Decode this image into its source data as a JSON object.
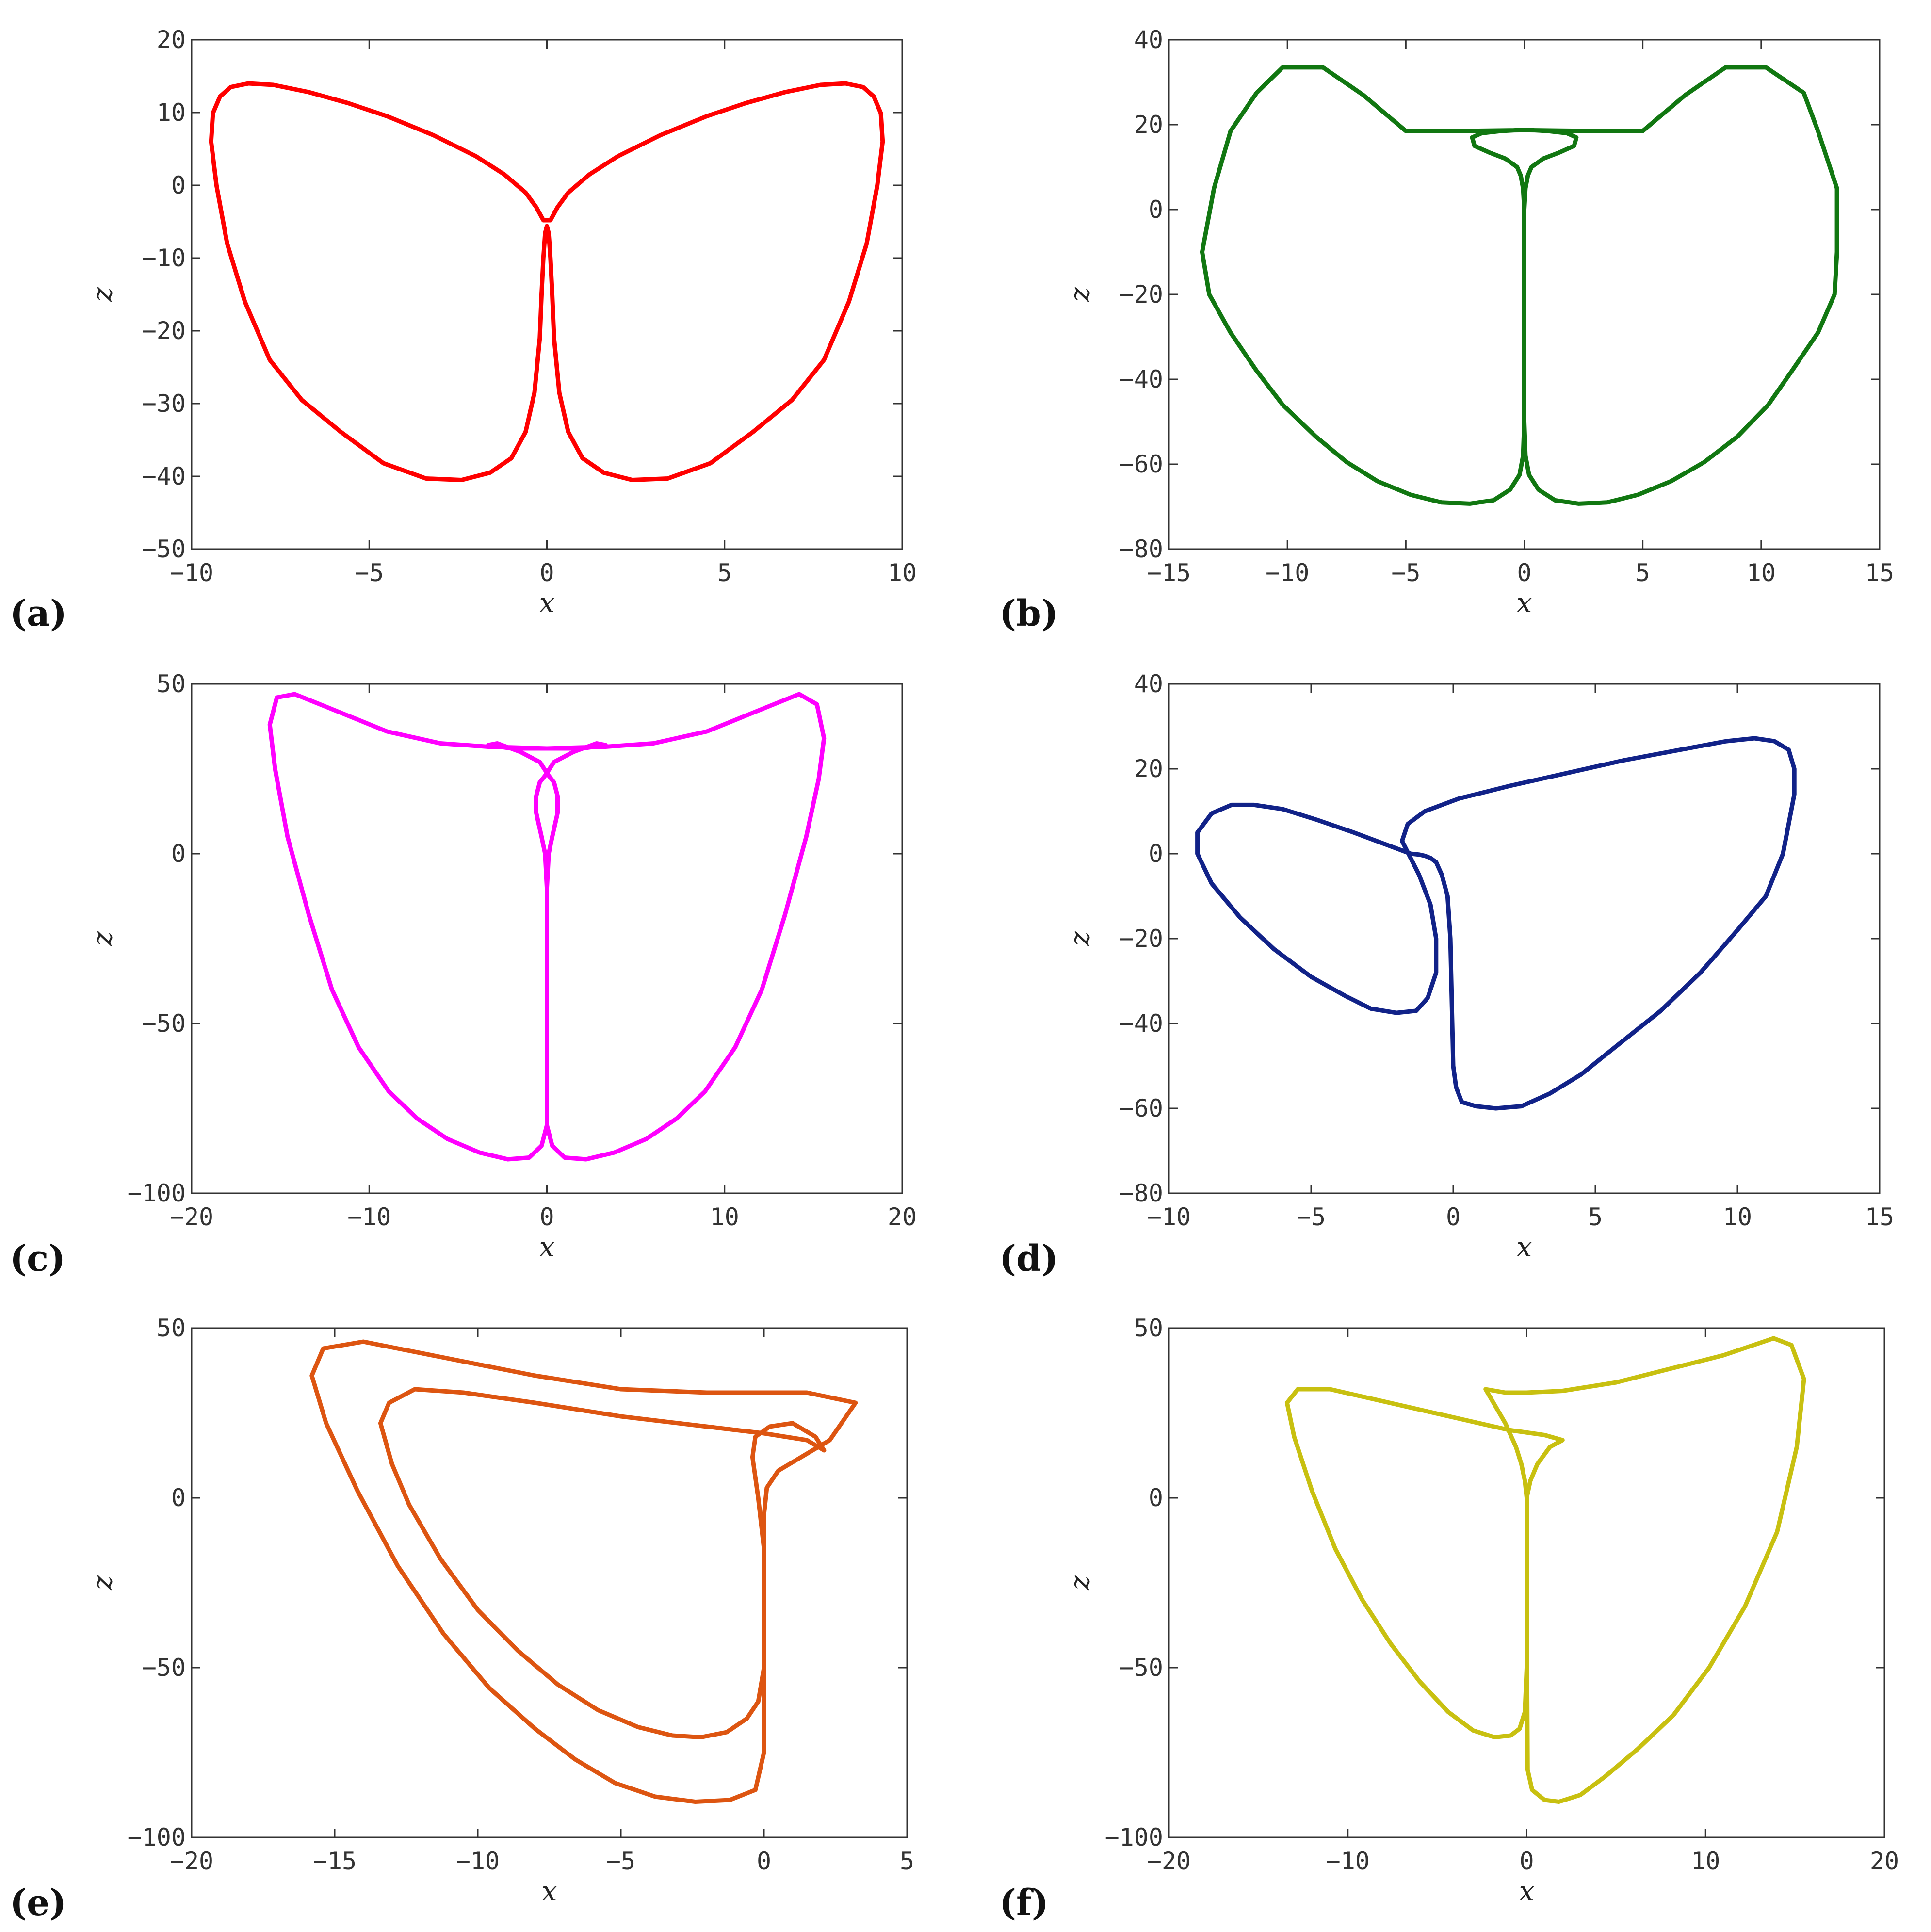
{
  "chart_data": [
    {
      "type": "line",
      "panel_label": "(a)",
      "xlabel": "x",
      "ylabel": "z",
      "xlim": [
        -10,
        10
      ],
      "ylim": [
        -50,
        20
      ],
      "xticks": [
        "−10",
        "−5",
        "0",
        "5",
        "10"
      ],
      "yticks": [
        "−50",
        "−40",
        "−30",
        "−20",
        "−10",
        "0",
        "10",
        "20"
      ],
      "xtick_values": [
        -10,
        -5,
        0,
        5,
        10
      ],
      "ytick_values": [
        -50,
        -40,
        -30,
        -20,
        -10,
        0,
        10,
        20
      ],
      "color": "#ff0000",
      "series": [
        {
          "x": [
            0.1,
            0.3,
            0.6,
            1.2,
            2.0,
            3.2,
            4.5,
            5.6,
            6.7,
            7.7,
            8.4,
            8.9,
            9.2,
            9.4,
            9.45,
            9.3,
            9.0,
            8.5,
            7.8,
            6.9,
            5.8,
            4.6,
            3.4,
            2.4,
            1.6,
            1.0,
            0.6,
            0.35,
            0.2,
            0.15,
            0.1,
            0.05,
            0,
            -0.05,
            -0.1,
            -0.15,
            -0.2,
            -0.35,
            -0.6,
            -1.0,
            -1.6,
            -2.4,
            -3.4,
            -4.6,
            -5.8,
            -6.9,
            -7.8,
            -8.5,
            -9.0,
            -9.3,
            -9.45,
            -9.4,
            -9.2,
            -8.9,
            -8.4,
            -7.7,
            -6.7,
            -5.6,
            -4.5,
            -3.2,
            -2.0,
            -1.2,
            -0.6,
            -0.3,
            -0.1,
            0.1
          ],
          "y": [
            -4.8,
            -3.0,
            -1.0,
            1.5,
            4.0,
            6.9,
            9.5,
            11.3,
            12.8,
            13.8,
            14.0,
            13.5,
            12.2,
            9.9,
            6.0,
            0.0,
            -8.0,
            -16.0,
            -24.0,
            -29.5,
            -33.9,
            -38.2,
            -40.3,
            -40.5,
            -39.5,
            -37.5,
            -33.9,
            -28.5,
            -21.0,
            -15.0,
            -10.0,
            -6.6,
            -5.6,
            -6.6,
            -10.0,
            -15.0,
            -21.0,
            -28.5,
            -33.9,
            -37.5,
            -39.5,
            -40.5,
            -40.3,
            -38.2,
            -33.9,
            -29.5,
            -24.0,
            -16.0,
            -8.0,
            0.0,
            6.0,
            9.9,
            12.2,
            13.5,
            14.0,
            13.8,
            12.8,
            11.3,
            9.5,
            6.9,
            4.0,
            1.5,
            -1.0,
            -3.0,
            -4.8,
            -4.8
          ]
        }
      ]
    },
    {
      "type": "line",
      "panel_label": "(b)",
      "xlabel": "x",
      "ylabel": "z",
      "xlim": [
        -15,
        15
      ],
      "ylim": [
        -80,
        40
      ],
      "xticks": [
        "−15",
        "−10",
        "−5",
        "0",
        "5",
        "10",
        "15"
      ],
      "yticks": [
        "−80",
        "−60",
        "−40",
        "−20",
        "0",
        "20",
        "40"
      ],
      "xtick_values": [
        -15,
        -10,
        -5,
        0,
        5,
        10,
        15
      ],
      "ytick_values": [
        -80,
        -60,
        -40,
        -20,
        0,
        20,
        40
      ],
      "color": "#117711",
      "series": [
        {
          "x": [
            0,
            0,
            0,
            0.05,
            0.15,
            0.3,
            0.8,
            1.5,
            2.1,
            2.2,
            1.8,
            1.0,
            0,
            -1.0,
            -1.8,
            -2.2,
            -2.1,
            -1.5,
            -0.8,
            -0.3,
            -0.15,
            -0.05,
            0,
            0,
            0,
            0.05,
            0.2,
            0.6,
            1.3,
            2.3,
            3.5,
            4.8,
            6.2,
            7.6,
            9.0,
            10.3,
            11.3,
            12.4,
            13.1,
            13.2,
            13.2,
            12.4,
            11.8,
            10.2,
            8.5,
            6.8,
            5.0,
            3.3,
            1.5,
            0,
            -1.5,
            -3.3,
            -5.0,
            -6.8,
            -8.5,
            -10.2,
            -11.3,
            -12.4,
            -13.1,
            -13.6,
            -13.3,
            -12.4,
            -11.3,
            -10.2,
            -8.8,
            -7.5,
            -6.2,
            -4.8,
            -3.5,
            -2.3,
            -1.3,
            -0.6,
            -0.2,
            -0.05,
            0,
            0
          ],
          "y": [
            -50,
            -20,
            0,
            5,
            8,
            10,
            12,
            13.5,
            15,
            17,
            18,
            18.5,
            18.8,
            18.5,
            18,
            17,
            15,
            13.5,
            12,
            10,
            8,
            5,
            0,
            -20,
            -50,
            -58,
            -62.5,
            -66,
            -68.5,
            -69.3,
            -69,
            -67.2,
            -64,
            -59.5,
            -53.5,
            -46,
            -38,
            -29,
            -20,
            -10,
            5,
            18.5,
            27.5,
            33.5,
            33.5,
            27,
            18.5,
            18.5,
            18.6,
            18.7,
            18.6,
            18.5,
            18.5,
            27,
            33.5,
            33.5,
            27.5,
            18.5,
            5,
            -10,
            -20,
            -29,
            -38,
            -46,
            -53.5,
            -59.5,
            -64,
            -67.2,
            -69,
            -69.3,
            -68.5,
            -66,
            -62.5,
            -58,
            -50,
            -50
          ]
        }
      ]
    },
    {
      "type": "line",
      "panel_label": "(c)",
      "xlabel": "x",
      "ylabel": "z",
      "xlim": [
        -20,
        20
      ],
      "ylim": [
        -100,
        50
      ],
      "xticks": [
        "−20",
        "−10",
        "0",
        "10",
        "20"
      ],
      "yticks": [
        "−100",
        "−50",
        "0",
        "50"
      ],
      "xtick_values": [
        -20,
        -10,
        0,
        10,
        20
      ],
      "ytick_values": [
        -100,
        -50,
        0,
        50
      ],
      "color": "#ff00ff",
      "series": [
        {
          "x": [
            0,
            0,
            0.1,
            0.3,
            0.6,
            0.6,
            0.4,
            0.1,
            -0.4,
            -1.5,
            -2.8,
            -3.3,
            -2.0,
            0,
            2.0,
            3.3,
            2.8,
            1.5,
            0.4,
            -0.1,
            -0.4,
            -0.6,
            -0.6,
            -0.3,
            -0.1,
            0,
            0,
            0.3,
            1.0,
            2.2,
            3.8,
            5.6,
            7.3,
            8.9,
            10.6,
            12.1,
            13.4,
            14.6,
            15.3,
            15.6,
            15.2,
            14.2,
            12.3,
            9.0,
            6.0,
            3.3,
            0,
            -3.3,
            -6.0,
            -9.0,
            -12.3,
            -14.2,
            -15.2,
            -15.6,
            -15.3,
            -14.6,
            -13.4,
            -12.1,
            -10.6,
            -8.9,
            -7.3,
            -5.6,
            -3.8,
            -2.2,
            -1.0,
            -0.3,
            0,
            0
          ],
          "y": [
            -50,
            -10,
            0,
            5,
            12,
            17,
            21,
            23,
            27,
            30,
            32.5,
            32,
            31,
            31,
            31,
            32,
            32.5,
            30,
            27,
            23,
            21,
            17,
            12,
            5,
            0,
            -10,
            -80,
            -86,
            -89.5,
            -90,
            -88,
            -84,
            -78,
            -70,
            -57,
            -40,
            -18,
            5,
            22,
            34,
            44,
            47,
            43,
            36,
            32.5,
            31.5,
            31,
            31.5,
            32.5,
            36,
            43,
            47,
            46,
            38,
            25,
            5,
            -18,
            -40,
            -57,
            -70,
            -78,
            -84,
            -88,
            -90,
            -89.5,
            -86,
            -80,
            -80
          ]
        }
      ]
    },
    {
      "type": "line",
      "panel_label": "(d)",
      "xlabel": "x",
      "ylabel": "z",
      "xlim": [
        -10,
        15
      ],
      "ylim": [
        -80,
        40
      ],
      "xticks": [
        "−10",
        "−5",
        "0",
        "5",
        "10",
        "15"
      ],
      "yticks": [
        "−80",
        "−60",
        "−40",
        "−20",
        "0",
        "20",
        "40"
      ],
      "xtick_values": [
        -10,
        -5,
        0,
        5,
        10,
        15
      ],
      "ytick_values": [
        -80,
        -60,
        -40,
        -20,
        0,
        20,
        40
      ],
      "color": "#112288",
      "series": [
        {
          "x": [
            -1.5,
            -2.5,
            -3.5,
            -4.8,
            -6.0,
            -7.0,
            -7.8,
            -8.5,
            -9.0,
            -9.0,
            -8.5,
            -7.5,
            -6.3,
            -5.0,
            -3.8,
            -2.9,
            -2.0,
            -1.3,
            -0.9,
            -0.6,
            -0.6,
            -0.8,
            -1.2,
            -1.8,
            -1.6,
            -1.0,
            0.2,
            2.0,
            4.0,
            6.0,
            8.0,
            9.6,
            10.6,
            11.3,
            11.8,
            12.0,
            12.0,
            11.6,
            11.0,
            10.0,
            8.7,
            7.3,
            5.8,
            4.5,
            3.4,
            2.4,
            1.5,
            0.8,
            0.3,
            0.1,
            0,
            -0.1,
            -0.2,
            -0.4,
            -0.6,
            -0.8,
            -1.0,
            -1.2,
            -1.5
          ],
          "y": [
            0,
            2.5,
            5,
            8,
            10.5,
            11.5,
            11.5,
            9.5,
            5,
            0,
            -7,
            -15,
            -22.5,
            -29,
            -33.5,
            -36.5,
            -37.5,
            -37,
            -34,
            -28,
            -20,
            -12,
            -5,
            3,
            7,
            10,
            13,
            16,
            19,
            22,
            24.5,
            26.5,
            27.2,
            26.5,
            24.5,
            20,
            14,
            0,
            -10,
            -18,
            -28,
            -37,
            -45,
            -52,
            -56.5,
            -59.5,
            -60,
            -59.5,
            -58.5,
            -55,
            -50,
            -20,
            -10,
            -5,
            -2,
            -1,
            -0.5,
            -0.2,
            0
          ]
        }
      ]
    },
    {
      "type": "line",
      "panel_label": "(e)",
      "xlabel": "x",
      "ylabel": "z",
      "xlim": [
        -20,
        5
      ],
      "ylim": [
        -100,
        50
      ],
      "xticks": [
        "−20",
        "−15",
        "−10",
        "−5",
        "0",
        "5"
      ],
      "yticks": [
        "−100",
        "−50",
        "0",
        "50"
      ],
      "xtick_values": [
        -20,
        -15,
        -10,
        -5,
        0,
        5
      ],
      "ytick_values": [
        -100,
        -50,
        0,
        50
      ],
      "color": "#dd5511",
      "series": [
        {
          "x": [
            0,
            0,
            0.1,
            0.5,
            1.3,
            2.3,
            3.2,
            1.5,
            0,
            -2,
            -5,
            -8,
            -11,
            -14,
            -15.4,
            -15.8,
            -15.3,
            -14.2,
            -12.8,
            -11.2,
            -9.6,
            -8.0,
            -6.6,
            -5.2,
            -3.8,
            -2.4,
            -1.2,
            -0.3,
            0,
            0,
            -0.2,
            -0.4,
            -0.3,
            0.2,
            1.0,
            1.8,
            2.1,
            1.5,
            0,
            -2,
            -5,
            -8,
            -10.5,
            -12.2,
            -13.1,
            -13.4,
            -13.0,
            -12.4,
            -11.3,
            -10.0,
            -8.6,
            -7.2,
            -5.8,
            -4.4,
            -3.2,
            -2.2,
            -1.3,
            -0.6,
            -0.2,
            0,
            0
          ],
          "y": [
            -60,
            -5,
            3,
            8,
            12,
            17,
            28,
            31,
            31,
            31,
            32,
            36,
            41,
            46,
            44,
            36,
            22,
            2,
            -20,
            -40,
            -56,
            -68,
            -77,
            -84,
            -88,
            -89.5,
            -89,
            -86,
            -75,
            -15,
            0,
            12,
            18,
            21,
            22,
            18,
            14,
            17,
            19,
            21,
            24,
            28,
            31,
            32,
            28,
            22,
            10,
            -2,
            -18,
            -33,
            -45,
            -55,
            -62.5,
            -67.5,
            -70,
            -70.5,
            -69,
            -65,
            -60,
            -50,
            -60
          ]
        }
      ]
    },
    {
      "type": "line",
      "panel_label": "(f)",
      "xlabel": "x",
      "ylabel": "z",
      "xlim": [
        -20,
        20
      ],
      "ylim": [
        -100,
        50
      ],
      "xticks": [
        "−20",
        "−10",
        "0",
        "10",
        "20"
      ],
      "yticks": [
        "−100",
        "−50",
        "0",
        "50"
      ],
      "xtick_values": [
        -20,
        -10,
        0,
        10,
        20
      ],
      "ytick_values": [
        -100,
        -50,
        0,
        50
      ],
      "color": "#c8c010",
      "series": [
        {
          "x": [
            0,
            0,
            -0.1,
            -0.3,
            -0.6,
            -1.2,
            -2.3,
            -1.2,
            0,
            2.0,
            5.0,
            8.0,
            11.0,
            13.8,
            14.8,
            15.5,
            15.1,
            14.0,
            12.2,
            10.2,
            8.2,
            6.2,
            4.4,
            3.0,
            1.8,
            1.0,
            0.3,
            0.05,
            0,
            0,
            0.2,
            0.6,
            1.3,
            2.0,
            1.0,
            -1.0,
            -3.5,
            -6.0,
            -8.5,
            -11.0,
            -12.8,
            -13.4,
            -13.0,
            -12.0,
            -10.7,
            -9.2,
            -7.6,
            -6.0,
            -4.4,
            -3.0,
            -1.8,
            -0.9,
            -0.4,
            -0.1,
            0
          ],
          "y": [
            -50,
            0,
            5,
            10,
            15,
            22,
            32,
            31,
            31,
            31.5,
            34,
            38,
            42,
            47,
            45,
            35,
            15,
            -10,
            -32,
            -50,
            -64,
            -74,
            -82,
            -87.5,
            -89.5,
            -89,
            -86,
            -80,
            -30,
            0,
            5,
            10,
            15,
            17,
            18.5,
            20,
            23,
            26,
            29,
            32,
            32,
            28,
            18,
            2,
            -15,
            -30,
            -43,
            -54,
            -63,
            -68.5,
            -70.5,
            -70,
            -68,
            -63,
            -50
          ]
        }
      ]
    }
  ]
}
